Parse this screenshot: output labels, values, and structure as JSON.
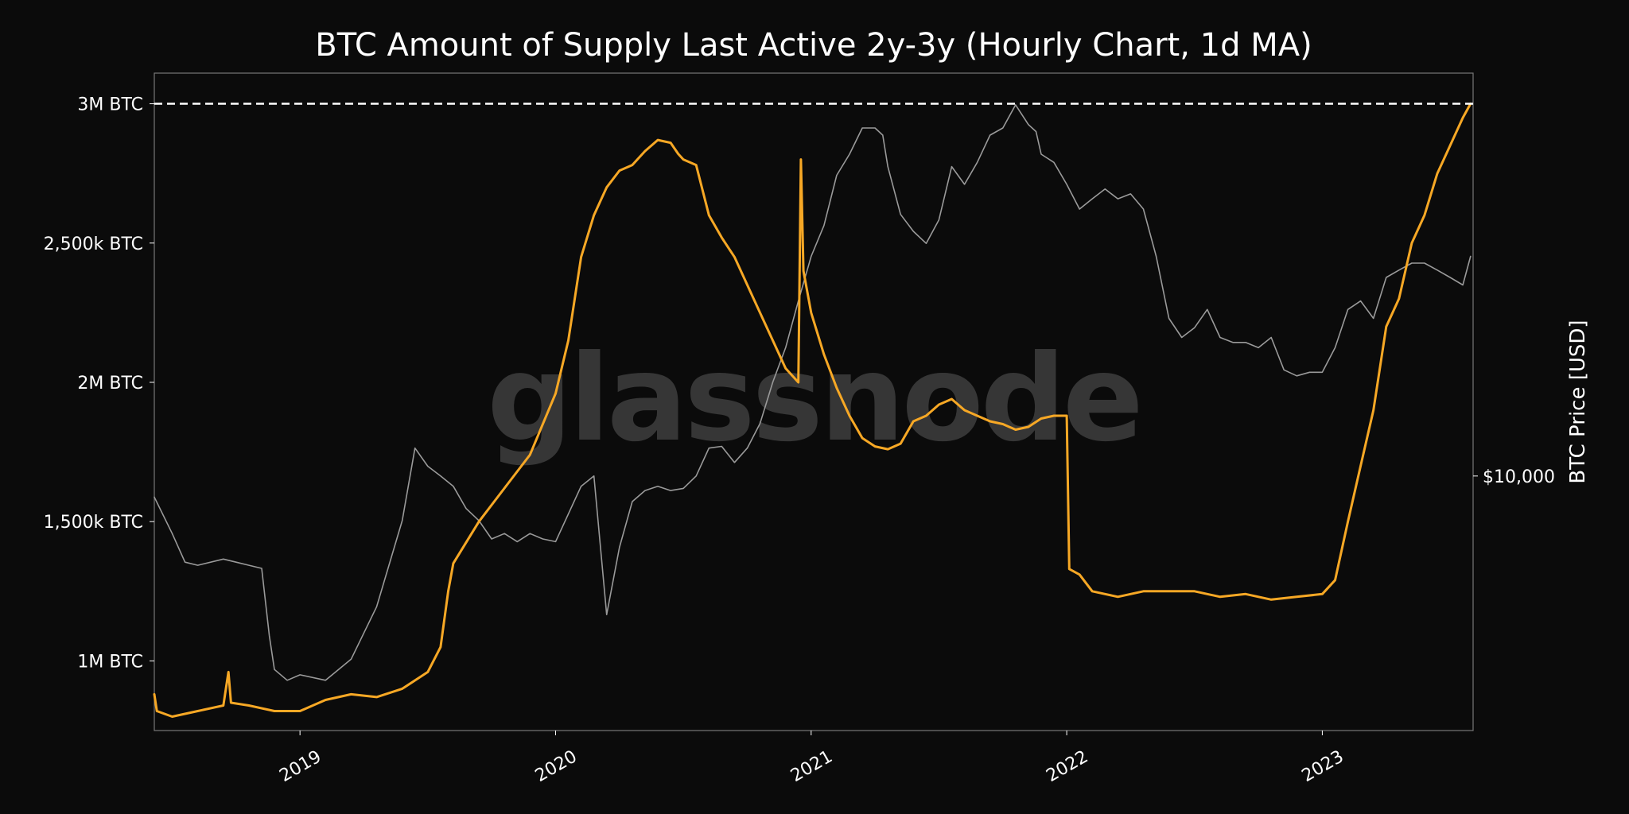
{
  "chart_data": {
    "type": "line",
    "title": "BTC Amount of Supply Last Active 2y-3y (Hourly Chart, 1d MA)",
    "watermark": "glassnode",
    "y_left": {
      "ticks": [
        {
          "value": 1000000,
          "label": "1M BTC"
        },
        {
          "value": 1500000,
          "label": "1,500k BTC"
        },
        {
          "value": 2000000,
          "label": "2M BTC"
        },
        {
          "value": 2500000,
          "label": "2,500k BTC"
        },
        {
          "value": 3000000,
          "label": "3M BTC"
        }
      ],
      "range": [
        750000,
        3110000
      ]
    },
    "y_right": {
      "label": "BTC Price [USD]",
      "scale": "log",
      "ticks": [
        {
          "value": 10000,
          "label": "$10,000"
        }
      ],
      "range": [
        2800,
        75000
      ]
    },
    "x_axis": {
      "ticks": [
        {
          "value": 2019.0,
          "label": "2019"
        },
        {
          "value": 2020.0,
          "label": "2020"
        },
        {
          "value": 2021.0,
          "label": "2021"
        },
        {
          "value": 2022.0,
          "label": "2022"
        },
        {
          "value": 2023.0,
          "label": "2023"
        }
      ],
      "range": [
        2018.43,
        2023.59
      ]
    },
    "reference_line": {
      "value": 3000000,
      "style": "dashed",
      "color": "#ffffff"
    },
    "series": [
      {
        "color": "#f7a825",
        "axis": "left",
        "x": [
          2018.43,
          2018.44,
          2018.5,
          2018.6,
          2018.7,
          2018.72,
          2018.73,
          2018.8,
          2018.9,
          2019.0,
          2019.1,
          2019.2,
          2019.3,
          2019.4,
          2019.5,
          2019.55,
          2019.58,
          2019.6,
          2019.7,
          2019.8,
          2019.9,
          2020.0,
          2020.05,
          2020.1,
          2020.15,
          2020.2,
          2020.25,
          2020.3,
          2020.35,
          2020.4,
          2020.45,
          2020.48,
          2020.5,
          2020.55,
          2020.6,
          2020.65,
          2020.7,
          2020.8,
          2020.9,
          2020.95,
          2020.96,
          2020.97,
          2021.0,
          2021.05,
          2021.1,
          2021.15,
          2021.2,
          2021.25,
          2021.3,
          2021.35,
          2021.4,
          2021.45,
          2021.5,
          2021.55,
          2021.6,
          2021.65,
          2021.7,
          2021.75,
          2021.8,
          2021.85,
          2021.9,
          2021.95,
          2022.0,
          2022.01,
          2022.05,
          2022.1,
          2022.15,
          2022.2,
          2022.3,
          2022.4,
          2022.5,
          2022.6,
          2022.7,
          2022.8,
          2022.9,
          2023.0,
          2023.05,
          2023.1,
          2023.15,
          2023.2,
          2023.25,
          2023.3,
          2023.35,
          2023.4,
          2023.45,
          2023.5,
          2023.55,
          2023.58
        ],
        "y": [
          880000,
          820000,
          800000,
          820000,
          840000,
          960000,
          850000,
          840000,
          820000,
          820000,
          860000,
          880000,
          870000,
          900000,
          960000,
          1050000,
          1250000,
          1350000,
          1500000,
          1620000,
          1740000,
          1960000,
          2150000,
          2450000,
          2600000,
          2700000,
          2760000,
          2780000,
          2830000,
          2870000,
          2860000,
          2820000,
          2800000,
          2780000,
          2600000,
          2520000,
          2450000,
          2250000,
          2050000,
          2000000,
          2800000,
          2400000,
          2250000,
          2100000,
          1980000,
          1880000,
          1800000,
          1770000,
          1760000,
          1780000,
          1860000,
          1880000,
          1920000,
          1940000,
          1900000,
          1880000,
          1860000,
          1850000,
          1830000,
          1840000,
          1870000,
          1880000,
          1880000,
          1330000,
          1310000,
          1250000,
          1240000,
          1230000,
          1250000,
          1250000,
          1250000,
          1230000,
          1240000,
          1220000,
          1230000,
          1240000,
          1290000,
          1500000,
          1700000,
          1900000,
          2200000,
          2300000,
          2500000,
          2600000,
          2750000,
          2850000,
          2950000,
          3000000
        ]
      },
      {
        "color": "#9a9a9a",
        "axis": "right",
        "x": [
          2018.43,
          2018.5,
          2018.55,
          2018.6,
          2018.7,
          2018.75,
          2018.8,
          2018.85,
          2018.88,
          2018.9,
          2018.95,
          2019.0,
          2019.1,
          2019.2,
          2019.3,
          2019.4,
          2019.45,
          2019.5,
          2019.55,
          2019.6,
          2019.65,
          2019.7,
          2019.75,
          2019.8,
          2019.85,
          2019.9,
          2019.95,
          2020.0,
          2020.1,
          2020.15,
          2020.2,
          2020.25,
          2020.3,
          2020.35,
          2020.4,
          2020.45,
          2020.5,
          2020.55,
          2020.6,
          2020.65,
          2020.7,
          2020.75,
          2020.8,
          2020.85,
          2020.9,
          2020.95,
          2021.0,
          2021.05,
          2021.1,
          2021.15,
          2021.2,
          2021.25,
          2021.28,
          2021.3,
          2021.35,
          2021.4,
          2021.45,
          2021.5,
          2021.55,
          2021.6,
          2021.65,
          2021.7,
          2021.75,
          2021.8,
          2021.85,
          2021.88,
          2021.9,
          2021.95,
          2022.0,
          2022.05,
          2022.1,
          2022.15,
          2022.2,
          2022.25,
          2022.3,
          2022.35,
          2022.4,
          2022.45,
          2022.5,
          2022.55,
          2022.6,
          2022.65,
          2022.7,
          2022.75,
          2022.8,
          2022.85,
          2022.9,
          2022.95,
          2023.0,
          2023.05,
          2023.1,
          2023.15,
          2023.2,
          2023.25,
          2023.3,
          2023.35,
          2023.4,
          2023.45,
          2023.5,
          2023.55,
          2023.58
        ],
        "y": [
          9000,
          7500,
          6500,
          6400,
          6600,
          6500,
          6400,
          6300,
          4500,
          3800,
          3600,
          3700,
          3600,
          4000,
          5200,
          8000,
          11500,
          10500,
          10000,
          9500,
          8500,
          8000,
          7300,
          7500,
          7200,
          7500,
          7300,
          7200,
          9500,
          10000,
          5000,
          7000,
          8800,
          9300,
          9500,
          9300,
          9400,
          10000,
          11500,
          11600,
          10700,
          11500,
          13000,
          16000,
          19000,
          24000,
          30000,
          35000,
          45000,
          50000,
          57000,
          57000,
          55000,
          47000,
          37000,
          34000,
          32000,
          36000,
          47000,
          43000,
          48000,
          55000,
          57000,
          64000,
          58000,
          56000,
          50000,
          48000,
          43000,
          38000,
          40000,
          42000,
          40000,
          41000,
          38000,
          30000,
          22000,
          20000,
          21000,
          23000,
          20000,
          19500,
          19500,
          19000,
          20000,
          17000,
          16500,
          16800,
          16800,
          19000,
          23000,
          24000,
          22000,
          27000,
          28000,
          29000,
          29000,
          28000,
          27000,
          26000,
          30000
        ]
      }
    ]
  }
}
